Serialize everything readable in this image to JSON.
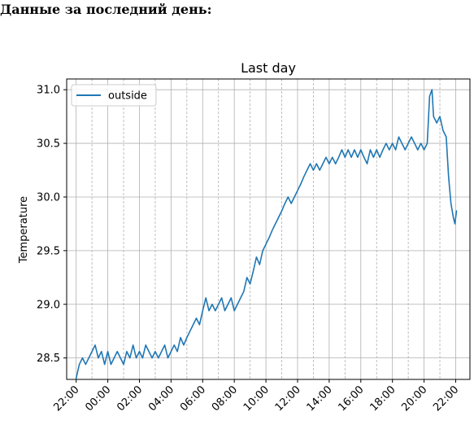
{
  "page": {
    "heading": "Данные за последний день:"
  },
  "chart_data": {
    "type": "line",
    "title": "Last day",
    "xlabel": "",
    "ylabel": "Temperature",
    "ylim": [
      28.3,
      31.1
    ],
    "yticks": [
      28.5,
      29.0,
      29.5,
      30.0,
      30.5,
      31.0
    ],
    "ytick_labels": [
      "28.5",
      "29.0",
      "29.5",
      "30.0",
      "30.5",
      "31.0"
    ],
    "xlim_hours": [
      -2.6,
      22.9
    ],
    "xtick_hours": [
      -2,
      0,
      2,
      4,
      6,
      8,
      10,
      12,
      14,
      16,
      18,
      20,
      22
    ],
    "xtick_labels": [
      "22:00",
      "00:00",
      "02:00",
      "04:00",
      "06:00",
      "08:00",
      "10:00",
      "12:00",
      "14:00",
      "16:00",
      "18:00",
      "20:00",
      "22:00"
    ],
    "minor_grid_hours": [
      -1,
      1,
      3,
      5,
      7,
      9,
      11,
      13,
      15,
      17,
      19,
      21
    ],
    "grid": true,
    "legend": {
      "position": "top-left",
      "entries": [
        "outside"
      ]
    },
    "series": [
      {
        "name": "outside",
        "color": "#1f77b4",
        "points": [
          [
            -2.0,
            28.31
          ],
          [
            -1.8,
            28.44
          ],
          [
            -1.6,
            28.5
          ],
          [
            -1.4,
            28.44
          ],
          [
            -1.2,
            28.5
          ],
          [
            -1.0,
            28.56
          ],
          [
            -0.8,
            28.62
          ],
          [
            -0.6,
            28.5
          ],
          [
            -0.4,
            28.56
          ],
          [
            -0.2,
            28.44
          ],
          [
            0.0,
            28.56
          ],
          [
            0.2,
            28.44
          ],
          [
            0.4,
            28.5
          ],
          [
            0.6,
            28.56
          ],
          [
            0.8,
            28.5
          ],
          [
            1.0,
            28.44
          ],
          [
            1.2,
            28.56
          ],
          [
            1.4,
            28.5
          ],
          [
            1.6,
            28.62
          ],
          [
            1.8,
            28.5
          ],
          [
            2.0,
            28.56
          ],
          [
            2.2,
            28.5
          ],
          [
            2.4,
            28.62
          ],
          [
            2.6,
            28.56
          ],
          [
            2.8,
            28.5
          ],
          [
            3.0,
            28.56
          ],
          [
            3.2,
            28.5
          ],
          [
            3.4,
            28.56
          ],
          [
            3.6,
            28.62
          ],
          [
            3.8,
            28.5
          ],
          [
            4.0,
            28.56
          ],
          [
            4.2,
            28.62
          ],
          [
            4.4,
            28.56
          ],
          [
            4.6,
            28.69
          ],
          [
            4.8,
            28.62
          ],
          [
            5.0,
            28.69
          ],
          [
            5.2,
            28.75
          ],
          [
            5.4,
            28.81
          ],
          [
            5.6,
            28.87
          ],
          [
            5.8,
            28.81
          ],
          [
            6.0,
            28.94
          ],
          [
            6.2,
            29.06
          ],
          [
            6.4,
            28.94
          ],
          [
            6.6,
            29.0
          ],
          [
            6.8,
            28.94
          ],
          [
            7.0,
            29.0
          ],
          [
            7.2,
            29.06
          ],
          [
            7.4,
            28.94
          ],
          [
            7.6,
            29.0
          ],
          [
            7.8,
            29.06
          ],
          [
            8.0,
            28.94
          ],
          [
            8.2,
            29.0
          ],
          [
            8.4,
            29.06
          ],
          [
            8.6,
            29.12
          ],
          [
            8.8,
            29.25
          ],
          [
            9.0,
            29.19
          ],
          [
            9.2,
            29.31
          ],
          [
            9.4,
            29.44
          ],
          [
            9.6,
            29.37
          ],
          [
            9.8,
            29.5
          ],
          [
            10.0,
            29.56
          ],
          [
            10.2,
            29.62
          ],
          [
            10.4,
            29.69
          ],
          [
            10.6,
            29.75
          ],
          [
            10.8,
            29.81
          ],
          [
            11.0,
            29.87
          ],
          [
            11.2,
            29.94
          ],
          [
            11.4,
            30.0
          ],
          [
            11.6,
            29.94
          ],
          [
            11.8,
            30.0
          ],
          [
            12.0,
            30.06
          ],
          [
            12.2,
            30.12
          ],
          [
            12.4,
            30.19
          ],
          [
            12.6,
            30.25
          ],
          [
            12.8,
            30.31
          ],
          [
            13.0,
            30.25
          ],
          [
            13.2,
            30.31
          ],
          [
            13.4,
            30.25
          ],
          [
            13.6,
            30.31
          ],
          [
            13.8,
            30.37
          ],
          [
            14.0,
            30.31
          ],
          [
            14.2,
            30.37
          ],
          [
            14.4,
            30.31
          ],
          [
            14.6,
            30.37
          ],
          [
            14.8,
            30.44
          ],
          [
            15.0,
            30.37
          ],
          [
            15.2,
            30.44
          ],
          [
            15.4,
            30.37
          ],
          [
            15.6,
            30.44
          ],
          [
            15.8,
            30.37
          ],
          [
            16.0,
            30.44
          ],
          [
            16.2,
            30.37
          ],
          [
            16.4,
            30.31
          ],
          [
            16.6,
            30.44
          ],
          [
            16.8,
            30.37
          ],
          [
            17.0,
            30.44
          ],
          [
            17.2,
            30.37
          ],
          [
            17.4,
            30.44
          ],
          [
            17.6,
            30.5
          ],
          [
            17.8,
            30.44
          ],
          [
            18.0,
            30.5
          ],
          [
            18.2,
            30.44
          ],
          [
            18.4,
            30.56
          ],
          [
            18.6,
            30.5
          ],
          [
            18.8,
            30.44
          ],
          [
            19.0,
            30.5
          ],
          [
            19.2,
            30.56
          ],
          [
            19.4,
            30.5
          ],
          [
            19.6,
            30.44
          ],
          [
            19.8,
            30.5
          ],
          [
            20.0,
            30.44
          ],
          [
            20.2,
            30.5
          ],
          [
            20.35,
            30.94
          ],
          [
            20.5,
            31.0
          ],
          [
            20.6,
            30.75
          ],
          [
            20.8,
            30.69
          ],
          [
            21.0,
            30.75
          ],
          [
            21.2,
            30.62
          ],
          [
            21.4,
            30.56
          ],
          [
            21.55,
            30.19
          ],
          [
            21.7,
            29.94
          ],
          [
            21.85,
            29.81
          ],
          [
            21.95,
            29.75
          ],
          [
            22.05,
            29.87
          ]
        ]
      }
    ]
  }
}
